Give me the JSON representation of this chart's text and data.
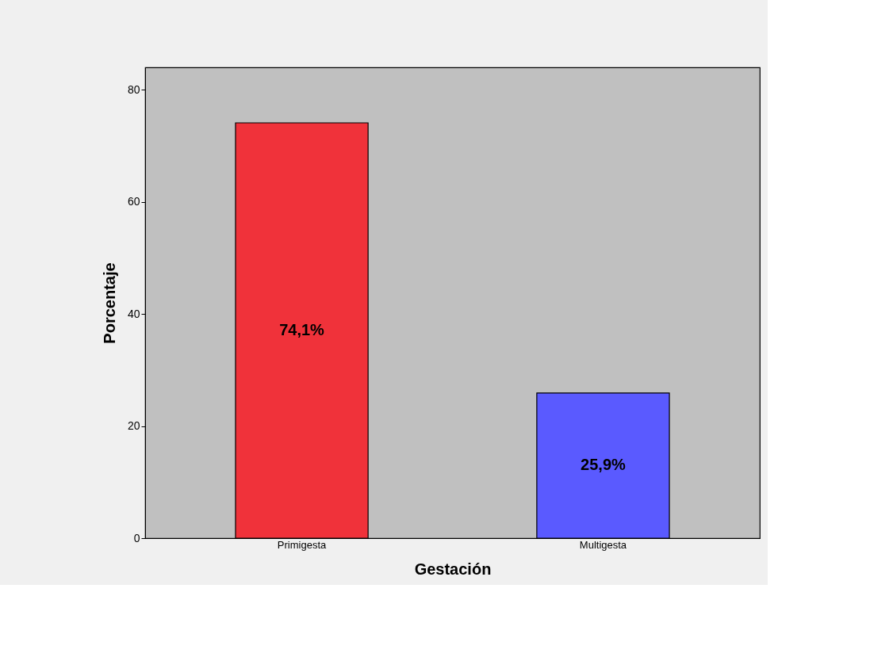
{
  "chart_data": {
    "type": "bar",
    "xlabel": "Gestación",
    "ylabel": "Porcentaje",
    "categories": [
      "Primigesta",
      "Multigesta"
    ],
    "values": [
      74.1,
      25.9
    ],
    "colors": [
      "#f0323a",
      "#5a5aff"
    ],
    "value_labels": [
      "74,1%",
      "25,9%"
    ],
    "ylim": [
      0,
      84
    ],
    "yticks": [
      0,
      20,
      40,
      60,
      80
    ],
    "grid": false
  }
}
